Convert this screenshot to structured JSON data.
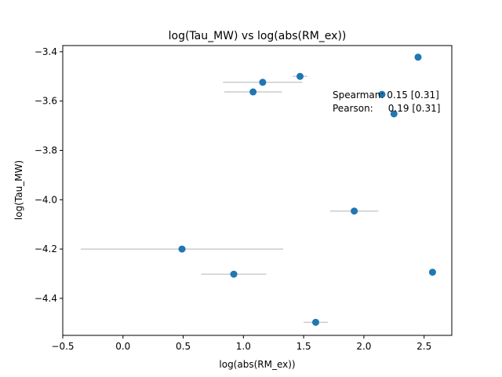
{
  "chart_data": {
    "type": "scatter",
    "title": "log(Tau_MW) vs log(abs(RM_ex))",
    "xlabel": "log(abs(RM_ex))",
    "ylabel": "log(Tau_MW)",
    "xlim": [
      -0.5,
      2.73
    ],
    "ylim": [
      -4.55,
      -3.375
    ],
    "xticks": [
      -0.5,
      0.0,
      0.5,
      1.0,
      1.5,
      2.0,
      2.5
    ],
    "xtick_labels": [
      "−0.5",
      "0.0",
      "0.5",
      "1.0",
      "1.5",
      "2.0",
      "2.5"
    ],
    "yticks": [
      -4.4,
      -4.2,
      -4.0,
      -3.8,
      -3.6,
      -3.4
    ],
    "ytick_labels": [
      "−4.4",
      "−4.2",
      "−4.0",
      "−3.8",
      "−3.6",
      "−3.4"
    ],
    "grid": false,
    "point_color": "#1f77b4",
    "errorbar_color": "#cccccc",
    "points": [
      {
        "x": 2.45,
        "y": -3.422,
        "xerr": 0
      },
      {
        "x": 1.47,
        "y": -3.5,
        "xerr": 0.06
      },
      {
        "x": 1.16,
        "y": -3.524,
        "xerr": 0.33
      },
      {
        "x": 1.08,
        "y": -3.563,
        "xerr": 0.24
      },
      {
        "x": 2.15,
        "y": -3.573,
        "xerr": 0
      },
      {
        "x": 2.25,
        "y": -3.652,
        "xerr": 0
      },
      {
        "x": 1.92,
        "y": -4.046,
        "xerr": 0.2
      },
      {
        "x": 0.49,
        "y": -4.2,
        "xerr": 0.84
      },
      {
        "x": 0.92,
        "y": -4.302,
        "xerr": 0.27
      },
      {
        "x": 2.57,
        "y": -4.294,
        "xerr": 0
      },
      {
        "x": 1.6,
        "y": -4.497,
        "xerr": 0.1
      }
    ],
    "annotations": [
      "Spearman: 0.15 [0.31]",
      "Pearson:     0.19 [0.31]"
    ]
  }
}
